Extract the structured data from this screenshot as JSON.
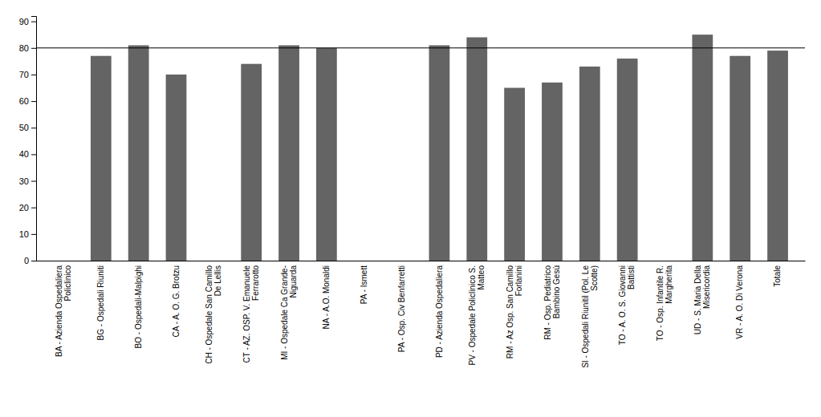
{
  "chart_data": {
    "type": "bar",
    "categories": [
      "BA - Azienda Ospedaliera\nPoliclinico",
      "BG - Ospedali Riuniti",
      "BO - Ospedali-Malpighi",
      "CA - A. O. G. Brotzu",
      "CH - Ospedale San Camillo\nDe Lellis",
      "CT - AZ. OSP. V. Emanuele\nFerrarotto",
      "MI - Ospedale Ca Grande-\nNiguarda",
      "NA - A.O. Monaldi",
      "PA - Ismett",
      "PA - Osp. Civ Benfarretti",
      "PD - Azienda Ospedaliera",
      "PV - Ospedale Policlinico S.\nMatteo",
      "RM - Az Osp. San Camillo\nForlanini",
      "RM - Osp. Pediatrico\nBambino Gesù",
      "SI - Ospedali Riunitil (Pol. Le\nScotte)",
      "TO - A. O. S. Giovanni\nBattisti",
      "TO - Osp. Infantile R.\nMargherita",
      "UD - S. Maria Della\nMisericordia",
      "VR - A. O. Di Verona",
      "Totale"
    ],
    "values": [
      0,
      77,
      81,
      70,
      0,
      74,
      81,
      80,
      0,
      0,
      81,
      84,
      65,
      67,
      73,
      76,
      0,
      85,
      77,
      79
    ],
    "color": "#646464",
    "hline": 80,
    "ylim": [
      0,
      92
    ],
    "yticks": [
      0,
      10,
      20,
      30,
      40,
      50,
      60,
      70,
      80,
      90
    ],
    "grid": false
  }
}
